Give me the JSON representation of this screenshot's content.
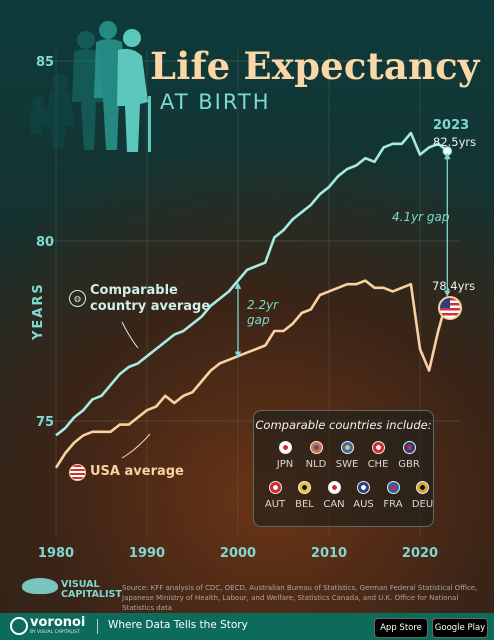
{
  "header": {
    "title": "Life Expectancy",
    "subtitle": "AT BIRTH"
  },
  "chart_data": {
    "type": "line",
    "title": "Life Expectancy",
    "subtitle": "AT BIRTH",
    "ylabel": "YEARS",
    "xlabel": "",
    "xlim": [
      1980,
      2023
    ],
    "ylim": [
      74,
      86
    ],
    "x_ticks": [
      1980,
      1990,
      2000,
      2010,
      2020
    ],
    "y_ticks": [
      75,
      80,
      85
    ],
    "grid": true,
    "series": [
      {
        "name": "Comparable country average",
        "color": "#a6ebe3",
        "x": [
          1980,
          1981,
          1982,
          1983,
          1984,
          1985,
          1986,
          1987,
          1988,
          1989,
          1990,
          1991,
          1992,
          1993,
          1994,
          1995,
          1996,
          1997,
          1998,
          1999,
          2000,
          2001,
          2002,
          2003,
          2004,
          2005,
          2006,
          2007,
          2008,
          2009,
          2010,
          2011,
          2012,
          2013,
          2014,
          2015,
          2016,
          2017,
          2018,
          2019,
          2020,
          2021,
          2022,
          2023
        ],
        "y": [
          74.6,
          74.8,
          75.1,
          75.3,
          75.6,
          75.7,
          76.0,
          76.3,
          76.5,
          76.6,
          76.8,
          77.0,
          77.2,
          77.4,
          77.5,
          77.7,
          77.9,
          78.2,
          78.4,
          78.6,
          78.9,
          79.2,
          79.3,
          79.4,
          80.1,
          80.3,
          80.6,
          80.8,
          81.0,
          81.3,
          81.5,
          81.8,
          82.0,
          82.1,
          82.3,
          82.2,
          82.6,
          82.7,
          82.7,
          83.0,
          82.4,
          82.6,
          82.7,
          82.5
        ]
      },
      {
        "name": "USA average",
        "color": "#fbd1a2",
        "x": [
          1980,
          1981,
          1982,
          1983,
          1984,
          1985,
          1986,
          1987,
          1988,
          1989,
          1990,
          1991,
          1992,
          1993,
          1994,
          1995,
          1996,
          1997,
          1998,
          1999,
          2000,
          2001,
          2002,
          2003,
          2004,
          2005,
          2006,
          2007,
          2008,
          2009,
          2010,
          2011,
          2012,
          2013,
          2014,
          2015,
          2016,
          2017,
          2018,
          2019,
          2020,
          2021,
          2022,
          2023
        ],
        "y": [
          73.7,
          74.1,
          74.4,
          74.6,
          74.7,
          74.7,
          74.7,
          74.9,
          74.9,
          75.1,
          75.3,
          75.4,
          75.7,
          75.5,
          75.7,
          75.8,
          76.1,
          76.4,
          76.6,
          76.7,
          76.8,
          76.9,
          77.0,
          77.1,
          77.5,
          77.5,
          77.7,
          78.0,
          78.1,
          78.5,
          78.6,
          78.7,
          78.8,
          78.8,
          78.9,
          78.7,
          78.7,
          78.6,
          78.7,
          78.8,
          77.0,
          76.4,
          77.5,
          78.4
        ]
      }
    ],
    "annotations": [
      {
        "text": "2023",
        "x": 2023
      },
      {
        "text": "82.5yrs",
        "x": 2023,
        "y": 82.5
      },
      {
        "text": "78.4yrs",
        "x": 2023,
        "y": 78.4
      },
      {
        "text": "4.1yr gap",
        "x": 2023,
        "from": 78.4,
        "to": 82.5
      },
      {
        "text_lines": [
          "2.2yr",
          "gap"
        ],
        "x": 2000,
        "from": 76.7,
        "to": 78.9
      }
    ],
    "legend_labels": {
      "comparable": [
        "Comparable",
        "country average"
      ],
      "usa": "USA average"
    }
  },
  "legend_box": {
    "title": "Comparable countries include:",
    "countries": [
      {
        "code": "JPN",
        "color": "#ffffff",
        "dot": "#d62828"
      },
      {
        "code": "NLD",
        "color": "#e06a3a",
        "dot": "#2f5fa8"
      },
      {
        "code": "SWE",
        "color": "#2f6fb0",
        "dot": "#f2c230"
      },
      {
        "code": "CHE",
        "color": "#d62828",
        "dot": "#ffffff"
      },
      {
        "code": "GBR",
        "color": "#2a3f7e",
        "dot": "#d62828"
      },
      {
        "code": "AUT",
        "color": "#d62828",
        "dot": "#ffffff"
      },
      {
        "code": "BEL",
        "color": "#e8c23a",
        "dot": "#111111"
      },
      {
        "code": "CAN",
        "color": "#ffffff",
        "dot": "#d62828"
      },
      {
        "code": "AUS",
        "color": "#25407e",
        "dot": "#ffffff"
      },
      {
        "code": "FRA",
        "color": "#2f5fa8",
        "dot": "#d62828"
      },
      {
        "code": "DEU",
        "color": "#d9a42c",
        "dot": "#111111"
      }
    ]
  },
  "brand": {
    "logo": "VISUAL CAPITALIST"
  },
  "source_text": "Source: KFF analysis of CDC, OECD, Australian Bureau of Statistics, German Federal Statistical Office, Japanese Ministry of Health, Labour, and Welfare, Statistics Canada, and U.K. Office for National Statistics data",
  "footer": {
    "logo": "voronoi",
    "logo_sub": "BY VISUAL CAPITALIST",
    "tagline": "Where Data Tells the Story",
    "app_store": "App Store",
    "google_play": "Google Play"
  },
  "colors": {
    "accent": "#7fd8d1",
    "usa": "#fbd1a2",
    "comparable": "#a6ebe3"
  }
}
